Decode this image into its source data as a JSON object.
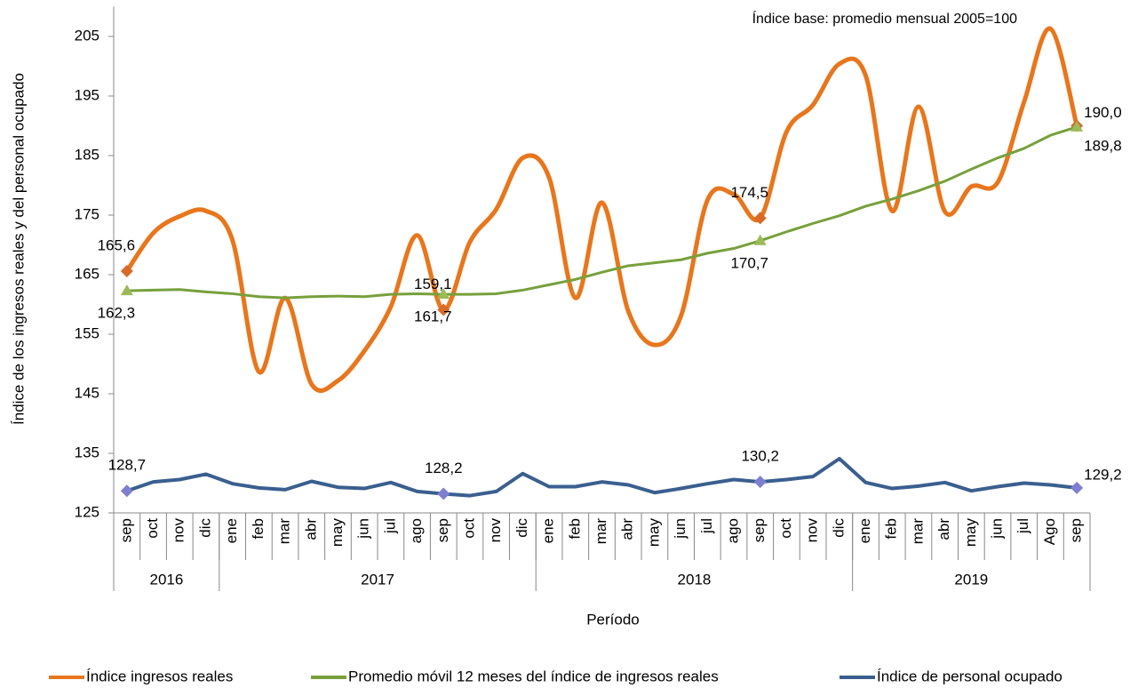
{
  "chart_data": {
    "type": "line",
    "annotation": "Índice base: promedio mensual 2005=100",
    "y_label": "Índice de los ingresos reales y del personal ocupado",
    "x_label": "Período",
    "categories": [
      "sep",
      "oct",
      "nov",
      "dic",
      "ene",
      "feb",
      "mar",
      "abr",
      "may",
      "jun",
      "jul",
      "ago",
      "sep",
      "oct",
      "nov",
      "dic",
      "ene",
      "feb",
      "mar",
      "abr",
      "may",
      "jun",
      "jul",
      "ago",
      "sep",
      "oct",
      "nov",
      "dic",
      "ene",
      "feb",
      "mar",
      "abr",
      "may",
      "jun",
      "jul",
      "Ago",
      "sep"
    ],
    "groups": [
      {
        "name": "2016",
        "span": 4
      },
      {
        "name": "2017",
        "span": 12
      },
      {
        "name": "2018",
        "span": 12
      },
      {
        "name": "2019",
        "span": 9
      }
    ],
    "ylim": [
      125,
      210
    ],
    "yticks": [
      125,
      135,
      145,
      155,
      165,
      175,
      185,
      195,
      205
    ],
    "grid": false,
    "legend": "bottom",
    "series": [
      {
        "name": "Índice ingresos reales",
        "color": "#e8761c",
        "smooth": true,
        "marker": "diamond",
        "marker_color": "#d86a2a",
        "values": [
          165.6,
          172,
          174.8,
          175.7,
          170.8,
          148.7,
          161.1,
          146.6,
          147.2,
          152.2,
          159.6,
          171.6,
          159.1,
          170.5,
          176,
          184.6,
          181.3,
          161.1,
          177.1,
          158.9,
          153.2,
          158.1,
          177.5,
          178.5,
          174.5,
          189,
          193.5,
          200.4,
          198.4,
          175.7,
          193.2,
          175.6,
          179.8,
          180.5,
          194,
          206.3,
          190.0
        ],
        "value_labels": [
          "165,6",
          null,
          null,
          null,
          null,
          null,
          null,
          null,
          null,
          null,
          null,
          null,
          "159,1",
          null,
          null,
          null,
          null,
          null,
          null,
          null,
          null,
          null,
          null,
          null,
          "174,5",
          null,
          null,
          null,
          null,
          null,
          null,
          null,
          null,
          null,
          null,
          null,
          "190,0"
        ]
      },
      {
        "name": "Promedio móvil 12 meses del índice de ingresos reales",
        "color": "#77a03c",
        "smooth": false,
        "marker": "triangle",
        "marker_color": "#9bbb59",
        "values": [
          162.3,
          162.4,
          162.5,
          162.1,
          161.8,
          161.3,
          161.1,
          161.3,
          161.4,
          161.3,
          161.7,
          161.8,
          161.7,
          161.7,
          161.8,
          162.4,
          163.3,
          164.2,
          165.4,
          166.5,
          167.0,
          167.5,
          168.6,
          169.4,
          170.7,
          172.2,
          173.6,
          174.9,
          176.5,
          177.7,
          179.1,
          180.7,
          182.7,
          184.6,
          186.2,
          188.4,
          189.8
        ],
        "value_labels": [
          "162,3",
          null,
          null,
          null,
          null,
          null,
          null,
          null,
          null,
          null,
          null,
          null,
          "161,7",
          null,
          null,
          null,
          null,
          null,
          null,
          null,
          null,
          null,
          null,
          null,
          "170,7",
          null,
          null,
          null,
          null,
          null,
          null,
          null,
          null,
          null,
          null,
          null,
          "189,8"
        ]
      },
      {
        "name": "Índice de personal ocupado",
        "color": "#3a5f8f",
        "smooth": false,
        "marker": "diamond",
        "marker_color": "#7f7fcf",
        "values": [
          128.7,
          130.2,
          130.6,
          131.5,
          129.9,
          129.2,
          128.9,
          130.3,
          129.3,
          129.1,
          130.1,
          128.6,
          128.2,
          127.9,
          128.6,
          131.6,
          129.4,
          129.4,
          130.2,
          129.7,
          128.4,
          129.1,
          129.9,
          130.6,
          130.2,
          130.6,
          131.1,
          134.1,
          130.1,
          129.1,
          129.5,
          130.1,
          128.7,
          129.4,
          130.0,
          129.7,
          129.2
        ],
        "value_labels": [
          "128,7",
          null,
          null,
          null,
          null,
          null,
          null,
          null,
          null,
          null,
          null,
          null,
          "128,2",
          null,
          null,
          null,
          null,
          null,
          null,
          null,
          null,
          null,
          null,
          null,
          "130,2",
          null,
          null,
          null,
          null,
          null,
          null,
          null,
          null,
          null,
          null,
          null,
          "129,2"
        ]
      }
    ]
  }
}
